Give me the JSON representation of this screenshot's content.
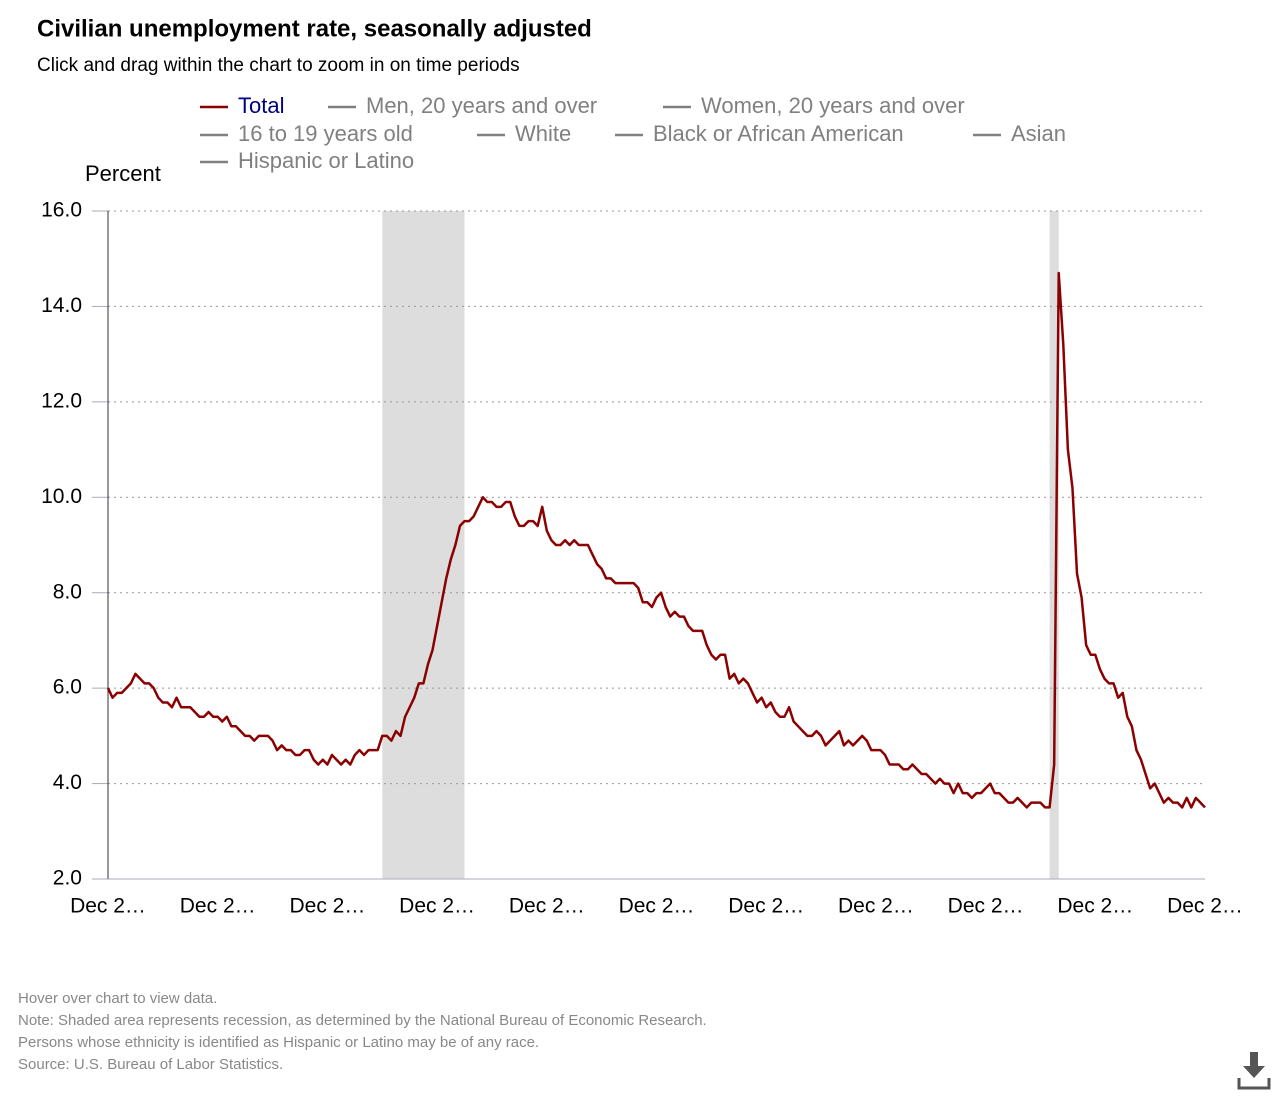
{
  "chart_data": {
    "type": "line",
    "title": "Civilian unemployment rate, seasonally adjusted",
    "subtitle": "Click and drag within the chart to zoom in on time periods",
    "y_label": "Percent",
    "ylim": [
      2,
      16
    ],
    "yticks": [
      {
        "value": 2,
        "label": "2.0"
      },
      {
        "value": 4,
        "label": "4.0"
      },
      {
        "value": 6,
        "label": "6.0"
      },
      {
        "value": 8,
        "label": "8.0"
      },
      {
        "value": 10,
        "label": "10.0"
      },
      {
        "value": 12,
        "label": "12.0"
      },
      {
        "value": 14,
        "label": "14.0"
      },
      {
        "value": 16,
        "label": "16.0"
      }
    ],
    "grid": true,
    "shaded_ranges": [
      [
        60,
        78
      ],
      [
        206,
        208
      ]
    ],
    "shade_color": "#dddddd",
    "categories": [
      "Dec 2…",
      null,
      null,
      null,
      null,
      null,
      null,
      null,
      null,
      null,
      null,
      null,
      null,
      null,
      null,
      null,
      null,
      null,
      null,
      null,
      null,
      null,
      null,
      null,
      "Dec 2…",
      null,
      null,
      null,
      null,
      null,
      null,
      null,
      null,
      null,
      null,
      null,
      null,
      null,
      null,
      null,
      null,
      null,
      null,
      null,
      null,
      null,
      null,
      null,
      "Dec 2…",
      null,
      null,
      null,
      null,
      null,
      null,
      null,
      null,
      null,
      null,
      null,
      null,
      null,
      null,
      null,
      null,
      null,
      null,
      null,
      null,
      null,
      null,
      null,
      "Dec 2…",
      null,
      null,
      null,
      null,
      null,
      null,
      null,
      null,
      null,
      null,
      null,
      null,
      null,
      null,
      null,
      null,
      null,
      null,
      null,
      null,
      null,
      null,
      null,
      "Dec 2…",
      null,
      null,
      null,
      null,
      null,
      null,
      null,
      null,
      null,
      null,
      null,
      null,
      null,
      null,
      null,
      null,
      null,
      null,
      null,
      null,
      null,
      null,
      null,
      "Dec 2…",
      null,
      null,
      null,
      null,
      null,
      null,
      null,
      null,
      null,
      null,
      null,
      null,
      null,
      null,
      null,
      null,
      null,
      null,
      null,
      null,
      null,
      null,
      null,
      "Dec 2…",
      null,
      null,
      null,
      null,
      null,
      null,
      null,
      null,
      null,
      null,
      null,
      null,
      null,
      null,
      null,
      null,
      null,
      null,
      null,
      null,
      null,
      null,
      null,
      "Dec 2…",
      null,
      null,
      null,
      null,
      null,
      null,
      null,
      null,
      null,
      null,
      null,
      null,
      null,
      null,
      null,
      null,
      null,
      null,
      null,
      null,
      null,
      null,
      null,
      "Dec 2…",
      null,
      null,
      null,
      null,
      null,
      null,
      null,
      null,
      null,
      null,
      null,
      null,
      null,
      null,
      null,
      null,
      null,
      null,
      null,
      null,
      null,
      null,
      null,
      "Dec 2…",
      null,
      null,
      null,
      null,
      null,
      null,
      null,
      null,
      null,
      null,
      null,
      null,
      null,
      null,
      null,
      null,
      null,
      null,
      null,
      null,
      null,
      null,
      null,
      "Dec 2…"
    ],
    "series": [
      {
        "name": "Total",
        "color": "#8b0000",
        "label_color": "#000080",
        "values": [
          6.0,
          5.8,
          5.9,
          5.9,
          6.0,
          6.1,
          6.3,
          6.2,
          6.1,
          6.1,
          6.0,
          5.8,
          5.7,
          5.7,
          5.6,
          5.8,
          5.6,
          5.6,
          5.6,
          5.5,
          5.4,
          5.4,
          5.5,
          5.4,
          5.4,
          5.3,
          5.4,
          5.2,
          5.2,
          5.1,
          5.0,
          5.0,
          4.9,
          5.0,
          5.0,
          5.0,
          4.9,
          4.7,
          4.8,
          4.7,
          4.7,
          4.6,
          4.6,
          4.7,
          4.7,
          4.5,
          4.4,
          4.5,
          4.4,
          4.6,
          4.5,
          4.4,
          4.5,
          4.4,
          4.6,
          4.7,
          4.6,
          4.7,
          4.7,
          4.7,
          5.0,
          5.0,
          4.9,
          5.1,
          5.0,
          5.4,
          5.6,
          5.8,
          6.1,
          6.1,
          6.5,
          6.8,
          7.3,
          7.8,
          8.3,
          8.7,
          9.0,
          9.4,
          9.5,
          9.5,
          9.6,
          9.8,
          10.0,
          9.9,
          9.9,
          9.8,
          9.8,
          9.9,
          9.9,
          9.6,
          9.4,
          9.4,
          9.5,
          9.5,
          9.4,
          9.8,
          9.3,
          9.1,
          9.0,
          9.0,
          9.1,
          9.0,
          9.1,
          9.0,
          9.0,
          9.0,
          8.8,
          8.6,
          8.5,
          8.3,
          8.3,
          8.2,
          8.2,
          8.2,
          8.2,
          8.2,
          8.1,
          7.8,
          7.8,
          7.7,
          7.9,
          8.0,
          7.7,
          7.5,
          7.6,
          7.5,
          7.5,
          7.3,
          7.2,
          7.2,
          7.2,
          6.9,
          6.7,
          6.6,
          6.7,
          6.7,
          6.2,
          6.3,
          6.1,
          6.2,
          6.1,
          5.9,
          5.7,
          5.8,
          5.6,
          5.7,
          5.5,
          5.4,
          5.4,
          5.6,
          5.3,
          5.2,
          5.1,
          5.0,
          5.0,
          5.1,
          5.0,
          4.8,
          4.9,
          5.0,
          5.1,
          4.8,
          4.9,
          4.8,
          4.9,
          5.0,
          4.9,
          4.7,
          4.7,
          4.7,
          4.6,
          4.4,
          4.4,
          4.4,
          4.3,
          4.3,
          4.4,
          4.3,
          4.2,
          4.2,
          4.1,
          4.0,
          4.1,
          4.0,
          4.0,
          3.8,
          4.0,
          3.8,
          3.8,
          3.7,
          3.8,
          3.8,
          3.9,
          4.0,
          3.8,
          3.8,
          3.7,
          3.6,
          3.6,
          3.7,
          3.6,
          3.5,
          3.6,
          3.6,
          3.6,
          3.5,
          3.5,
          4.4,
          14.7,
          13.2,
          11.0,
          10.2,
          8.4,
          7.9,
          6.9,
          6.7,
          6.7,
          6.4,
          6.2,
          6.1,
          6.1,
          5.8,
          5.9,
          5.4,
          5.2,
          4.7,
          4.5,
          4.2,
          3.9,
          4.0,
          3.8,
          3.6,
          3.7,
          3.6,
          3.6,
          3.5,
          3.7,
          3.5,
          3.7,
          3.6,
          3.5
        ]
      },
      {
        "name": "Men, 20 years and over",
        "color": "#808080",
        "label_color": "#808080",
        "hidden": true
      },
      {
        "name": "Women, 20 years and over",
        "color": "#808080",
        "label_color": "#808080",
        "hidden": true
      },
      {
        "name": "16 to 19 years old",
        "color": "#808080",
        "label_color": "#808080",
        "hidden": true
      },
      {
        "name": "White",
        "color": "#808080",
        "label_color": "#808080",
        "hidden": true
      },
      {
        "name": "Black or African American",
        "color": "#808080",
        "label_color": "#808080",
        "hidden": true
      },
      {
        "name": "Asian",
        "color": "#808080",
        "label_color": "#808080",
        "hidden": true
      },
      {
        "name": "Hispanic or Latino",
        "color": "#808080",
        "label_color": "#808080",
        "hidden": true
      }
    ],
    "notes": [
      "Hover over chart to view data.",
      "Note: Shaded area represents recession, as determined by the National Bureau of Economic Research.",
      "Persons whose ethnicity is identified as Hispanic or Latino may be of any race.",
      "Source: U.S. Bureau of Labor Statistics."
    ]
  }
}
